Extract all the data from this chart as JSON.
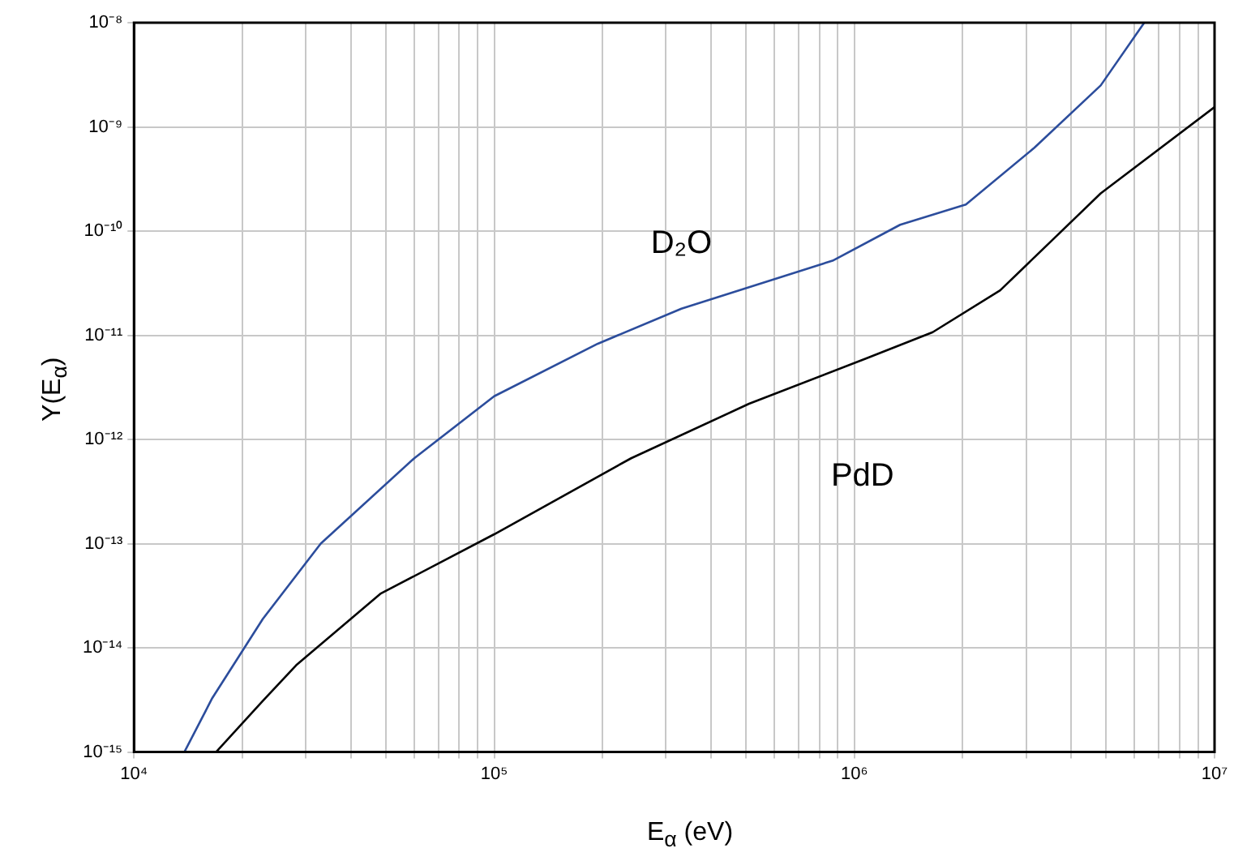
{
  "chart_data": {
    "type": "line",
    "xlabel": "E$_{α}$ (eV)",
    "ylabel": "Y(E$_{α}$)",
    "log": "xy",
    "grid": true,
    "legend": false,
    "marker": "none",
    "line_style": "solid",
    "xlim": [
      10000,
      10000000
    ],
    "ylim": [
      1e-15,
      1e-08
    ],
    "xticks": [
      {
        "value": 10000,
        "label": "10⁴"
      },
      {
        "value": 20000,
        "label": null
      },
      {
        "value": 30000,
        "label": null
      },
      {
        "value": 40000,
        "label": null
      },
      {
        "value": 50000,
        "label": null
      },
      {
        "value": 60000,
        "label": null
      },
      {
        "value": 70000,
        "label": null
      },
      {
        "value": 80000,
        "label": null
      },
      {
        "value": 90000,
        "label": null
      },
      {
        "value": 100000,
        "label": "10⁵"
      },
      {
        "value": 200000,
        "label": null
      },
      {
        "value": 300000,
        "label": null
      },
      {
        "value": 400000,
        "label": null
      },
      {
        "value": 500000,
        "label": null
      },
      {
        "value": 600000,
        "label": null
      },
      {
        "value": 700000,
        "label": null
      },
      {
        "value": 800000,
        "label": null
      },
      {
        "value": 900000,
        "label": null
      },
      {
        "value": 1000000,
        "label": "10⁶"
      },
      {
        "value": 2000000,
        "label": null
      },
      {
        "value": 3000000,
        "label": null
      },
      {
        "value": 4000000,
        "label": null
      },
      {
        "value": 5000000,
        "label": null
      },
      {
        "value": 6000000,
        "label": null
      },
      {
        "value": 7000000,
        "label": null
      },
      {
        "value": 8000000,
        "label": null
      },
      {
        "value": 9000000,
        "label": null
      },
      {
        "value": 10000000,
        "label": "10⁷"
      }
    ],
    "yticks": [
      {
        "value": 1e-15,
        "label": "10⁻¹⁵"
      },
      {
        "value": 1e-14,
        "label": "10⁻¹⁴"
      },
      {
        "value": 1e-13,
        "label": "10⁻¹³"
      },
      {
        "value": 1e-12,
        "label": "10⁻¹²"
      },
      {
        "value": 1e-11,
        "label": "10⁻¹¹"
      },
      {
        "value": 1e-10,
        "label": "10⁻¹⁰"
      },
      {
        "value": 1e-09,
        "label": "10⁻⁹"
      },
      {
        "value": 1e-08,
        "label": "10⁻⁸"
      }
    ],
    "series": [
      {
        "name": "D₂O",
        "color": "#2c4d9c",
        "x": [
          13800,
          16500,
          22800,
          33000,
          60000,
          100000,
          194000,
          331000,
          870000,
          1340000,
          2040000,
          3160000,
          4830000,
          6380000
        ],
        "values": [
          1e-15,
          3.3e-15,
          1.9e-14,
          1e-13,
          6.6e-13,
          2.6e-12,
          8.3e-12,
          1.8e-11,
          5.2e-11,
          1.15e-10,
          1.8e-10,
          6.3e-10,
          2.5e-09,
          1e-08
        ]
      },
      {
        "name": "PdD",
        "color": "#000000",
        "x": [
          16900,
          22800,
          28200,
          48300,
          100000,
          240000,
          510000,
          1080000,
          1650000,
          2540000,
          4830000,
          10000000
        ],
        "values": [
          1e-15,
          3.1e-15,
          6.8e-15,
          3.3e-14,
          1.23e-13,
          6.6e-13,
          2.2e-12,
          6e-12,
          1.07e-11,
          2.7e-11,
          2.3e-10,
          1.55e-09
        ]
      }
    ]
  }
}
